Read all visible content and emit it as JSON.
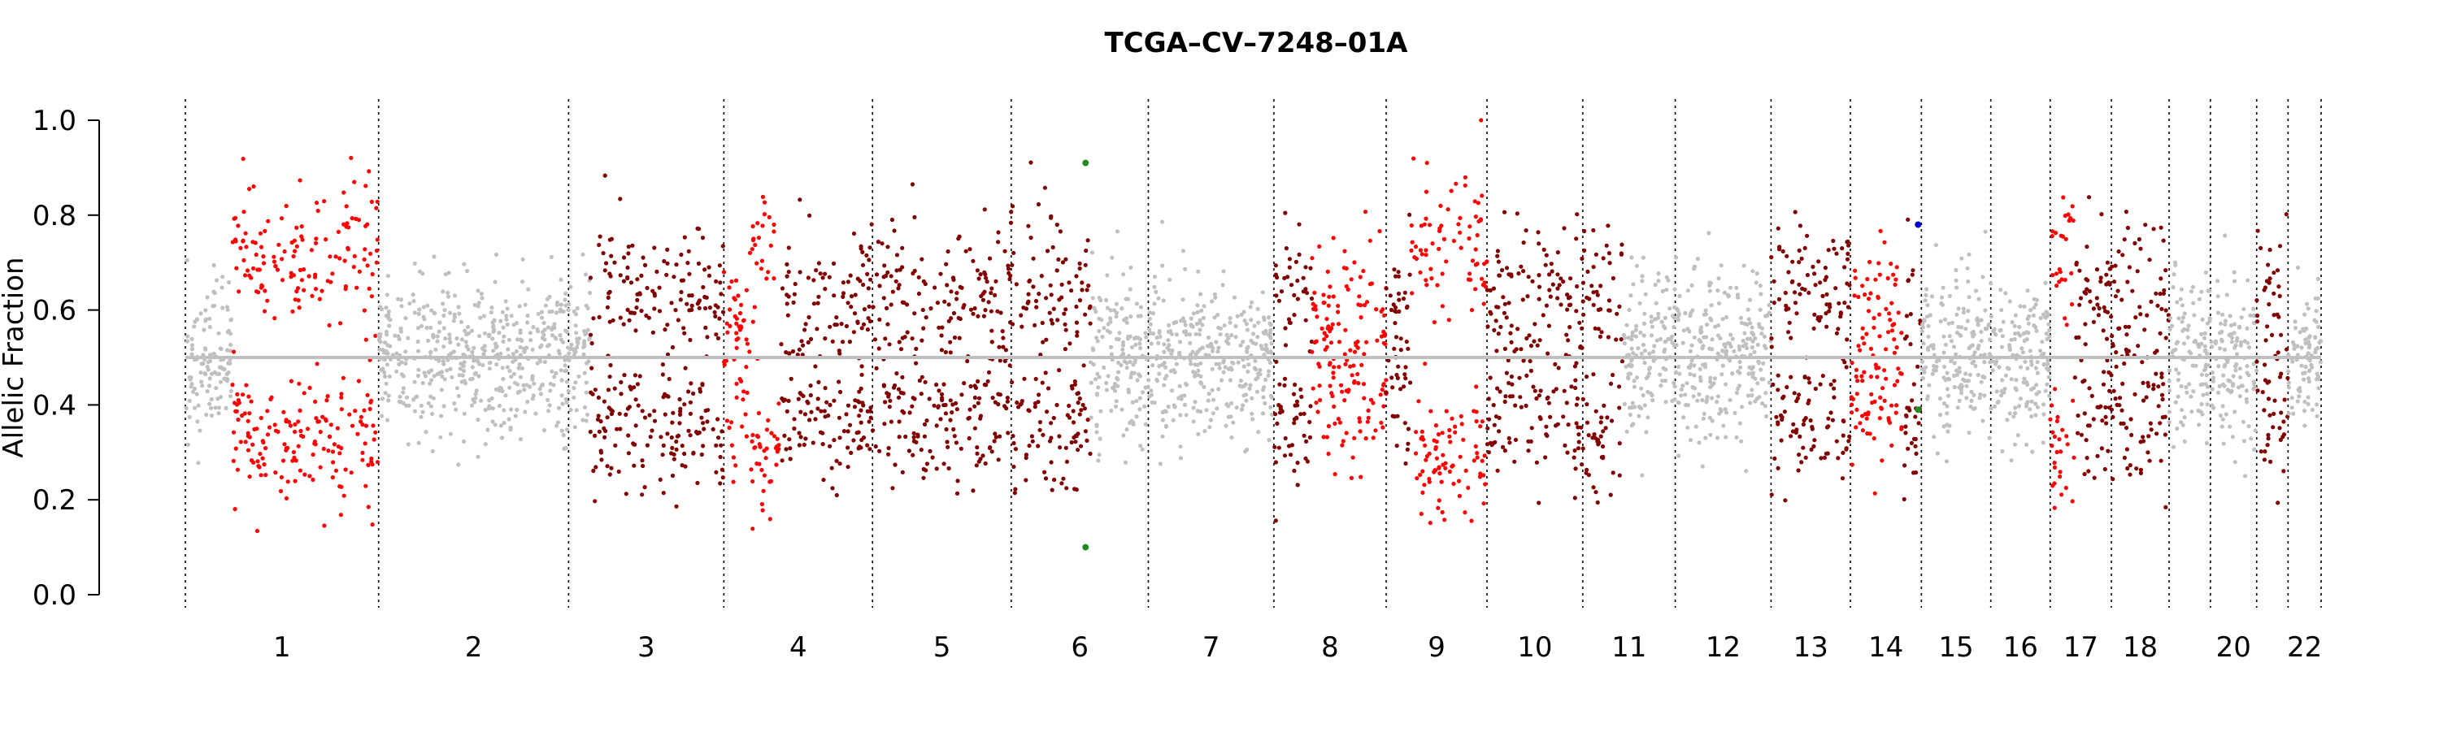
{
  "chart_data": {
    "type": "scatter",
    "title": "TCGA–CV–7248–01A",
    "xlabel": "",
    "ylabel": "Allelic Fraction",
    "ylim": [
      0,
      1
    ],
    "yticks": [
      "0.0",
      "0.2",
      "0.4",
      "0.6",
      "0.8",
      "1.0"
    ],
    "reference_line_y": 0.5,
    "grid": false,
    "legend": "none",
    "colors": {
      "normal": "#c0c0c0",
      "imbalance": "#ff0000",
      "gain": "#800000",
      "variant_green": "#228b22",
      "variant_blue": "#0000cd"
    },
    "chromosome_labels": [
      "1",
      "2",
      "3",
      "4",
      "5",
      "6",
      "7",
      "8",
      "9",
      "10",
      "11",
      "12",
      "13",
      "14",
      "15",
      "16",
      "17",
      "18",
      "20",
      "22"
    ],
    "chromosomes": [
      {
        "chr": "1",
        "start": 0,
        "end": 117,
        "label": true,
        "segments": [
          {
            "from": 0,
            "to": 28,
            "type": "normal"
          },
          {
            "from": 28,
            "to": 117,
            "type": "imbalance",
            "upper": 0.7,
            "lower": 0.33
          }
        ]
      },
      {
        "chr": "2",
        "start": 117,
        "end": 232,
        "label": true,
        "segments": [
          {
            "from": 117,
            "to": 232,
            "type": "normal"
          }
        ]
      },
      {
        "chr": "3",
        "start": 232,
        "end": 326,
        "label": true,
        "segments": [
          {
            "from": 232,
            "to": 245,
            "type": "normal"
          },
          {
            "from": 245,
            "to": 326,
            "type": "gain",
            "upper": 0.65,
            "lower": 0.35
          }
        ]
      },
      {
        "chr": "4",
        "start": 326,
        "end": 416,
        "label": true,
        "segments": [
          {
            "from": 326,
            "to": 342,
            "type": "imbalance",
            "upper": 0.6,
            "lower": 0.4
          },
          {
            "from": 342,
            "to": 360,
            "type": "imbalance",
            "upper": 0.72,
            "lower": 0.3
          },
          {
            "from": 360,
            "to": 416,
            "type": "gain",
            "upper": 0.62,
            "lower": 0.38
          }
        ]
      },
      {
        "chr": "5",
        "start": 416,
        "end": 500,
        "label": true,
        "segments": [
          {
            "from": 416,
            "to": 500,
            "type": "gain",
            "upper": 0.62,
            "lower": 0.38
          }
        ]
      },
      {
        "chr": "6",
        "start": 500,
        "end": 583,
        "label": true,
        "segments": [
          {
            "from": 500,
            "to": 548,
            "type": "gain",
            "upper": 0.65,
            "lower": 0.35
          },
          {
            "from": 548,
            "to": 583,
            "type": "normal"
          }
        ]
      },
      {
        "chr": "7",
        "start": 583,
        "end": 659,
        "label": true,
        "segments": [
          {
            "from": 583,
            "to": 659,
            "type": "normal"
          }
        ]
      },
      {
        "chr": "8",
        "start": 659,
        "end": 727,
        "label": true,
        "segments": [
          {
            "from": 659,
            "to": 682,
            "type": "gain",
            "upper": 0.66,
            "lower": 0.36
          },
          {
            "from": 682,
            "to": 727,
            "type": "imbalance",
            "upper": 0.6,
            "lower": 0.42
          }
        ]
      },
      {
        "chr": "9",
        "start": 727,
        "end": 788,
        "label": true,
        "segments": [
          {
            "from": 727,
            "to": 742,
            "type": "gain",
            "upper": 0.62,
            "lower": 0.4
          },
          {
            "from": 742,
            "to": 788,
            "type": "imbalance",
            "upper": 0.75,
            "lower": 0.3
          }
        ]
      },
      {
        "chr": "10",
        "start": 788,
        "end": 846,
        "label": true,
        "segments": [
          {
            "from": 788,
            "to": 846,
            "type": "gain",
            "upper": 0.63,
            "lower": 0.38
          }
        ]
      },
      {
        "chr": "11",
        "start": 846,
        "end": 902,
        "label": true,
        "segments": [
          {
            "from": 846,
            "to": 870,
            "type": "gain",
            "upper": 0.65,
            "lower": 0.35
          },
          {
            "from": 870,
            "to": 902,
            "type": "normal"
          }
        ]
      },
      {
        "chr": "12",
        "start": 902,
        "end": 960,
        "label": true,
        "segments": [
          {
            "from": 902,
            "to": 960,
            "type": "normal"
          }
        ]
      },
      {
        "chr": "13",
        "start": 960,
        "end": 1008,
        "label": true,
        "segments": [
          {
            "from": 960,
            "to": 1008,
            "type": "gain",
            "upper": 0.65,
            "lower": 0.36
          }
        ]
      },
      {
        "chr": "14",
        "start": 1008,
        "end": 1051,
        "label": true,
        "segments": [
          {
            "from": 1008,
            "to": 1040,
            "type": "imbalance",
            "upper": 0.6,
            "lower": 0.4
          },
          {
            "from": 1040,
            "to": 1051,
            "type": "gain",
            "upper": 0.65,
            "lower": 0.35
          }
        ]
      },
      {
        "chr": "15",
        "start": 1051,
        "end": 1093,
        "label": true,
        "segments": [
          {
            "from": 1051,
            "to": 1093,
            "type": "normal"
          }
        ]
      },
      {
        "chr": "16",
        "start": 1093,
        "end": 1129,
        "label": true,
        "segments": [
          {
            "from": 1093,
            "to": 1129,
            "type": "normal"
          }
        ]
      },
      {
        "chr": "17",
        "start": 1129,
        "end": 1166,
        "label": true,
        "segments": [
          {
            "from": 1129,
            "to": 1144,
            "type": "imbalance",
            "upper": 0.72,
            "lower": 0.28
          },
          {
            "from": 1144,
            "to": 1166,
            "type": "gain",
            "upper": 0.62,
            "lower": 0.38
          }
        ]
      },
      {
        "chr": "18",
        "start": 1166,
        "end": 1201,
        "label": true,
        "segments": [
          {
            "from": 1166,
            "to": 1201,
            "type": "gain",
            "upper": 0.62,
            "lower": 0.4
          }
        ]
      },
      {
        "chr": "19",
        "start": 1201,
        "end": 1226,
        "label": false,
        "segments": [
          {
            "from": 1201,
            "to": 1226,
            "type": "normal"
          }
        ]
      },
      {
        "chr": "20",
        "start": 1226,
        "end": 1254,
        "label": true,
        "segments": [
          {
            "from": 1226,
            "to": 1254,
            "type": "normal"
          }
        ]
      },
      {
        "chr": "21",
        "start": 1254,
        "end": 1273,
        "label": false,
        "segments": [
          {
            "from": 1254,
            "to": 1273,
            "type": "gain",
            "upper": 0.65,
            "lower": 0.37
          }
        ]
      },
      {
        "chr": "22",
        "start": 1273,
        "end": 1293,
        "label": true,
        "segments": [
          {
            "from": 1273,
            "to": 1293,
            "type": "normal"
          }
        ]
      }
    ],
    "highlighted_variants": [
      {
        "x": 545,
        "y": 0.91,
        "color": "variant_green"
      },
      {
        "x": 545,
        "y": 0.1,
        "color": "variant_green"
      },
      {
        "x": 1049,
        "y": 0.78,
        "color": "variant_blue"
      },
      {
        "x": 1049,
        "y": 0.39,
        "color": "variant_green"
      }
    ]
  }
}
